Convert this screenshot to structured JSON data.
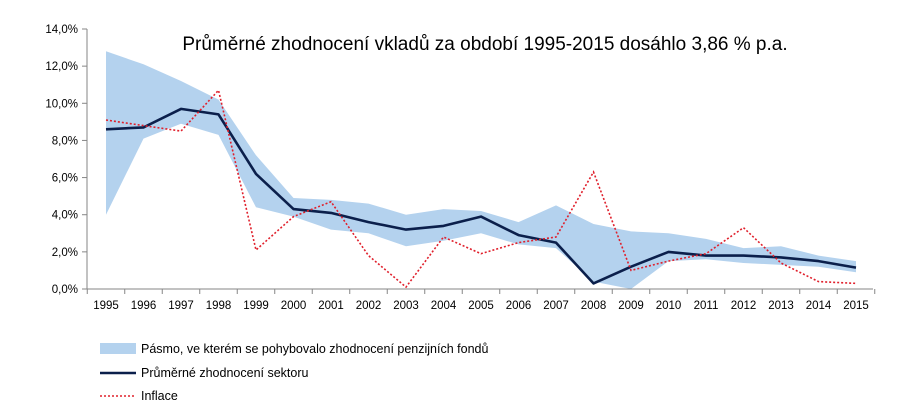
{
  "chart_data": {
    "type": "line",
    "title": "Průměrné zhodnocení vkladů za období 1995-2015 dosáhlo 3,86 % p.a.",
    "xlabel": "",
    "ylabel": "",
    "categories": [
      "1995",
      "1996",
      "1997",
      "1998",
      "1999",
      "2000",
      "2001",
      "2002",
      "2003",
      "2004",
      "2005",
      "2006",
      "2007",
      "2008",
      "2009",
      "2010",
      "2011",
      "2012",
      "2013",
      "2014",
      "2015"
    ],
    "ylim": [
      0,
      14
    ],
    "yticks": [
      "0,0%",
      "2,0%",
      "4,0%",
      "6,0%",
      "8,0%",
      "10,0%",
      "12,0%",
      "14,0%"
    ],
    "grid": false,
    "legend_position": "bottom-left",
    "series": [
      {
        "name": "Pásmo, ve kterém se pohybovalo zhodnocení penzijních fondů",
        "kind": "band",
        "color": "#b4d2ee",
        "upper": [
          12.8,
          12.1,
          11.2,
          10.2,
          7.2,
          4.9,
          4.8,
          4.6,
          4.0,
          4.3,
          4.2,
          3.6,
          4.5,
          3.5,
          3.1,
          3.0,
          2.7,
          2.2,
          2.3,
          1.8,
          1.5
        ],
        "lower": [
          4.0,
          8.1,
          8.9,
          8.3,
          4.4,
          3.9,
          3.2,
          3.0,
          2.3,
          2.6,
          3.0,
          2.4,
          2.2,
          0.4,
          0.0,
          1.5,
          1.6,
          1.4,
          1.3,
          1.2,
          0.9
        ]
      },
      {
        "name": "Průměrné zhodnocení sektoru",
        "kind": "line",
        "color": "#0b1f4b",
        "values": [
          8.6,
          8.7,
          9.7,
          9.4,
          6.2,
          4.3,
          4.1,
          3.6,
          3.2,
          3.4,
          3.9,
          2.9,
          2.5,
          0.3,
          1.2,
          2.0,
          1.8,
          1.8,
          1.7,
          1.5,
          1.15
        ]
      },
      {
        "name": "Inflace",
        "kind": "dotted-line",
        "color": "#e0202c",
        "values": [
          9.1,
          8.8,
          8.5,
          10.7,
          2.1,
          3.9,
          4.7,
          1.8,
          0.1,
          2.8,
          1.9,
          2.5,
          2.8,
          6.3,
          1.0,
          1.5,
          1.9,
          3.3,
          1.4,
          0.4,
          0.3
        ]
      }
    ]
  }
}
